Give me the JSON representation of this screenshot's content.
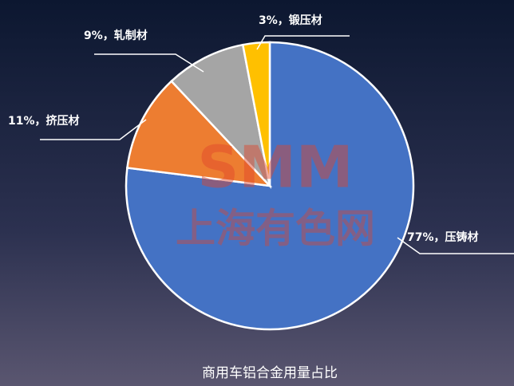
{
  "chart_data": {
    "type": "pie",
    "title": "商用车铝合金用量占比",
    "values": [
      77,
      11,
      9,
      3
    ],
    "value_labels": [
      "77%，压铸材",
      "11%，挤压材",
      "9%，轧制材",
      "3%，锻压材"
    ],
    "colors": [
      "#4472c4",
      "#ed7d31",
      "#a5a5a5",
      "#ffc000"
    ],
    "watermark": [
      "SMM",
      "上海有色网"
    ]
  }
}
